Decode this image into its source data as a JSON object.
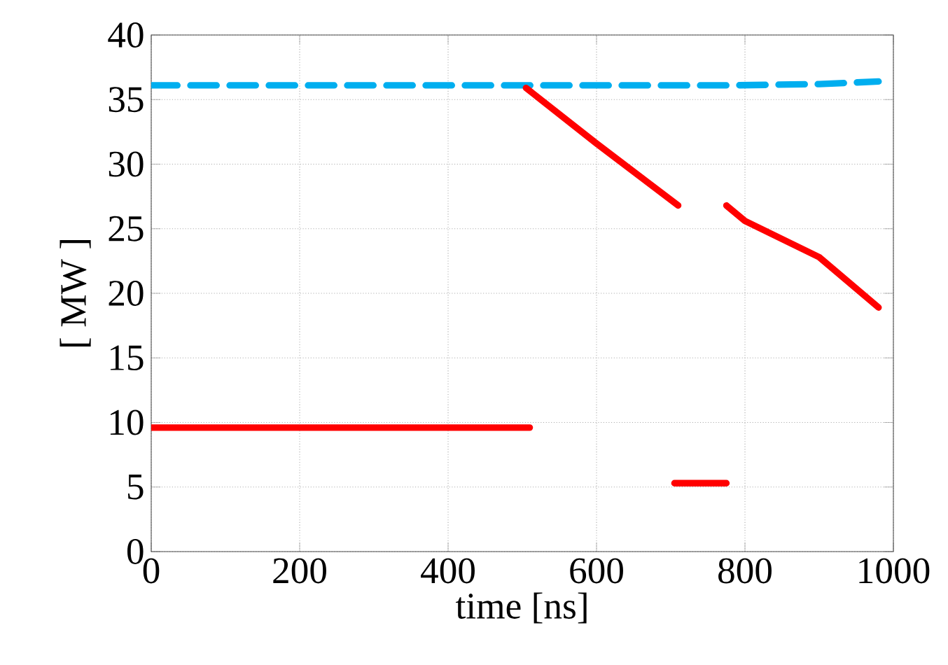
{
  "chart_data": {
    "type": "line",
    "xlabel": "time [ns]",
    "ylabel": "[ MW ]",
    "xlim": [
      0,
      1000
    ],
    "ylim": [
      0,
      40
    ],
    "xticks": [
      0,
      200,
      400,
      600,
      800,
      1000
    ],
    "yticks": [
      0,
      5,
      10,
      15,
      20,
      25,
      30,
      35,
      40
    ],
    "grid": true,
    "series": [
      {
        "color": "#00aeef",
        "line_style": "dashed",
        "x": [
          0,
          780,
          900,
          980
        ],
        "values": [
          36.1,
          36.1,
          36.2,
          36.4
        ]
      },
      {
        "color": "#ff0000",
        "line_style": "solid",
        "x": [
          0,
          510,
          null,
          505,
          600,
          710,
          null,
          775,
          800,
          900,
          980,
          null,
          705,
          775
        ],
        "values": [
          9.6,
          9.6,
          null,
          35.9,
          31.6,
          26.8,
          null,
          26.8,
          25.6,
          22.8,
          18.9,
          null,
          5.3,
          5.3
        ]
      }
    ]
  }
}
